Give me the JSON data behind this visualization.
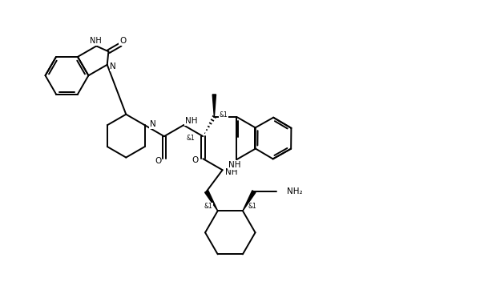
{
  "background_color": "#ffffff",
  "line_color": "#000000",
  "line_width": 1.4,
  "font_size": 7.5,
  "figsize": [
    6.14,
    3.77
  ],
  "dpi": 100,
  "xlim": [
    0,
    11
  ],
  "ylim": [
    0,
    7
  ]
}
